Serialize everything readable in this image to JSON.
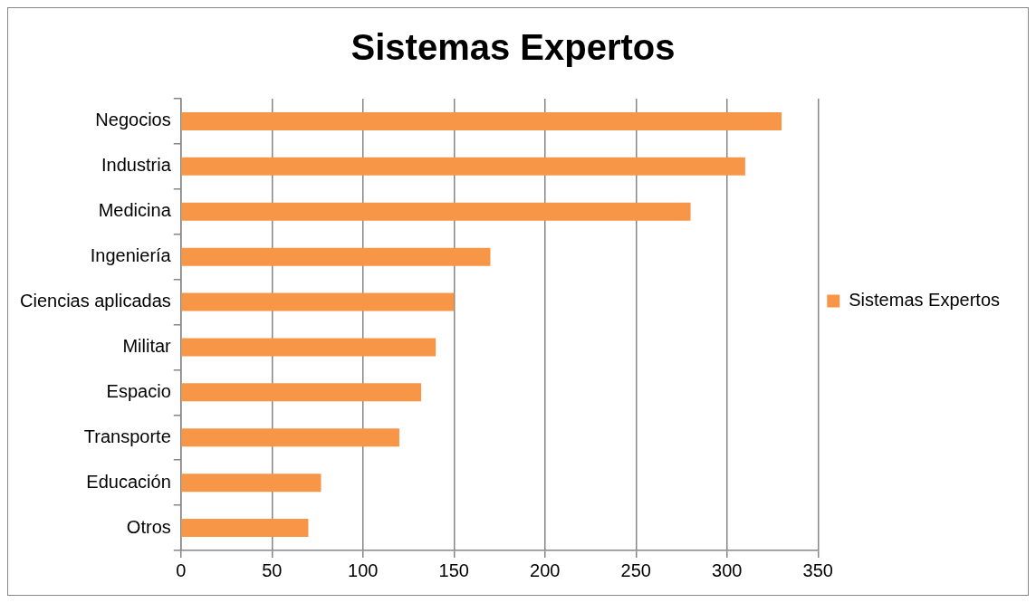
{
  "chart_data": {
    "type": "bar",
    "title": "Sistemas Expertos",
    "orientation": "horizontal",
    "categories": [
      "Negocios",
      "Industria",
      "Medicina",
      "Ingeniería",
      "Ciencias aplicadas",
      "Militar",
      "Espacio",
      "Transporte",
      "Educación",
      "Otros"
    ],
    "series": [
      {
        "name": "Sistemas Expertos",
        "color": "#f79646",
        "values": [
          330,
          310,
          280,
          170,
          150,
          140,
          132,
          120,
          77,
          70
        ]
      }
    ],
    "xlim": [
      0,
      350
    ],
    "xticks": [
      0,
      50,
      100,
      150,
      200,
      250,
      300,
      350
    ],
    "grid": "x",
    "legend": "right"
  }
}
